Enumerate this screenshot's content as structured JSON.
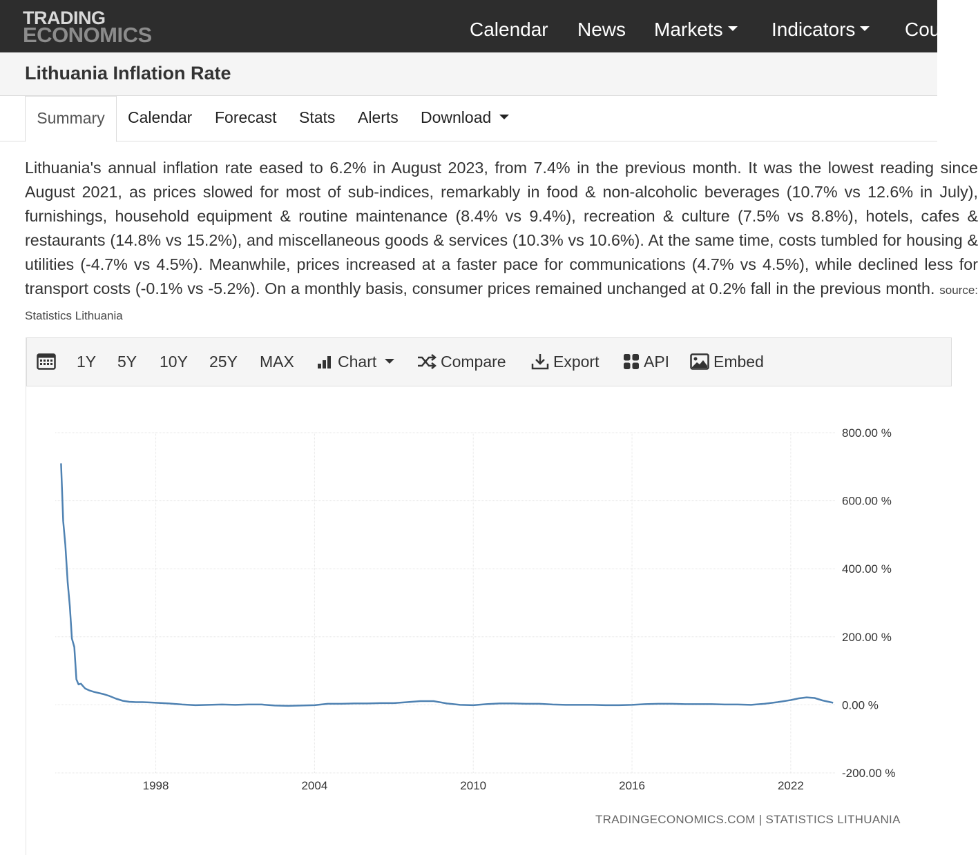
{
  "brand": {
    "line1": "TRADING",
    "line2": "ECONOMICS"
  },
  "nav": {
    "calendar": "Calendar",
    "news": "News",
    "markets": "Markets",
    "indicators": "Indicators",
    "countries": "Cou"
  },
  "page": {
    "title": "Lithuania Inflation Rate"
  },
  "tabs": {
    "summary": "Summary",
    "calendar": "Calendar",
    "forecast": "Forecast",
    "stats": "Stats",
    "alerts": "Alerts",
    "download": "Download"
  },
  "summary": {
    "text": "Lithuania's annual inflation rate eased to 6.2% in August 2023, from 7.4% in the previous month. It was the lowest reading since August 2021, as prices slowed for most of sub-indices, remarkably in food & non-alcoholic beverages (10.7% vs 12.6% in July), furnishings, household equipment & routine maintenance (8.4% vs 9.4%), recreation & culture (7.5% vs 8.8%), hotels, cafes & restaurants (14.8% vs 15.2%), and miscellaneous goods & services (10.3% vs 10.6%). At the same time, costs tumbled for housing & utilities (-4.7% vs 4.5%). Meanwhile, prices increased at a faster pace for communications (4.7% vs 4.5%), while declined less for transport costs (-0.1% vs -5.2%). On a monthly basis, consumer prices remained unchanged at 0.2% fall in the previous month.",
    "source": "source: Statistics Lithuania"
  },
  "toolbar": {
    "r1y": "1Y",
    "r5y": "5Y",
    "r10y": "10Y",
    "r25y": "25Y",
    "rmax": "MAX",
    "chart": "Chart",
    "compare": "Compare",
    "export": "Export",
    "api": "API",
    "embed": "Embed"
  },
  "colors": {
    "line": "#4f82b2",
    "nav_bg": "#2d2d2d"
  },
  "watermark": "TRADINGECONOMICS.COM | STATISTICS LITHUANIA",
  "chart_data": {
    "type": "line",
    "title": "",
    "xlabel": "",
    "ylabel": "",
    "xlim": [
      1994.2,
      2023.7
    ],
    "ylim": [
      -200,
      800
    ],
    "x_ticks": [
      1998,
      2004,
      2010,
      2016,
      2022
    ],
    "x_tick_labels": [
      "1998",
      "2004",
      "2010",
      "2016",
      "2022"
    ],
    "y_ticks": [
      800,
      600,
      400,
      200,
      0,
      -200
    ],
    "y_tick_labels": [
      "800.00 %",
      "600.00 %",
      "400.00 %",
      "200.00 %",
      "0.00 %",
      "-200.00 %"
    ],
    "grid": true,
    "y_axis_side": "right",
    "series": [
      {
        "x": [
          1994.42,
          1994.5,
          1994.58,
          1994.67,
          1994.75,
          1994.83,
          1994.92,
          1995.0,
          1995.08,
          1995.17,
          1995.25,
          1995.33,
          1995.5,
          1995.67,
          1995.83,
          1996.0,
          1996.25,
          1996.5,
          1996.75,
          1997.0,
          1997.25,
          1997.5,
          1997.75,
          1998.0,
          1998.5,
          1999.0,
          1999.5,
          2000.0,
          2000.5,
          2001.0,
          2001.5,
          2002.0,
          2002.5,
          2003.0,
          2003.5,
          2004.0,
          2004.5,
          2005.0,
          2005.5,
          2006.0,
          2006.5,
          2007.0,
          2007.5,
          2008.0,
          2008.5,
          2009.0,
          2009.5,
          2010.0,
          2010.5,
          2011.0,
          2011.5,
          2012.0,
          2012.5,
          2013.0,
          2013.5,
          2014.0,
          2014.5,
          2015.0,
          2015.5,
          2016.0,
          2016.5,
          2017.0,
          2017.5,
          2018.0,
          2018.5,
          2019.0,
          2019.5,
          2020.0,
          2020.5,
          2021.0,
          2021.5,
          2022.0,
          2022.3,
          2022.6,
          2022.9,
          2023.2,
          2023.6
        ],
        "y": [
          710,
          540,
          470,
          360,
          290,
          195,
          170,
          75,
          60,
          62,
          55,
          48,
          42,
          38,
          35,
          32,
          26,
          18,
          12,
          9,
          8,
          8,
          7,
          6,
          4,
          1,
          -1,
          0,
          1,
          0,
          1,
          1,
          -2,
          -3,
          -2,
          -1,
          3,
          3,
          4,
          4,
          5,
          5,
          8,
          11,
          11,
          4,
          0,
          -1,
          2,
          4,
          4,
          3,
          3,
          1,
          0,
          0,
          0,
          -1,
          -1,
          0,
          2,
          3,
          3,
          2,
          2,
          2,
          1,
          1,
          0,
          3,
          8,
          14,
          19,
          22,
          20,
          13,
          6
        ]
      }
    ]
  }
}
